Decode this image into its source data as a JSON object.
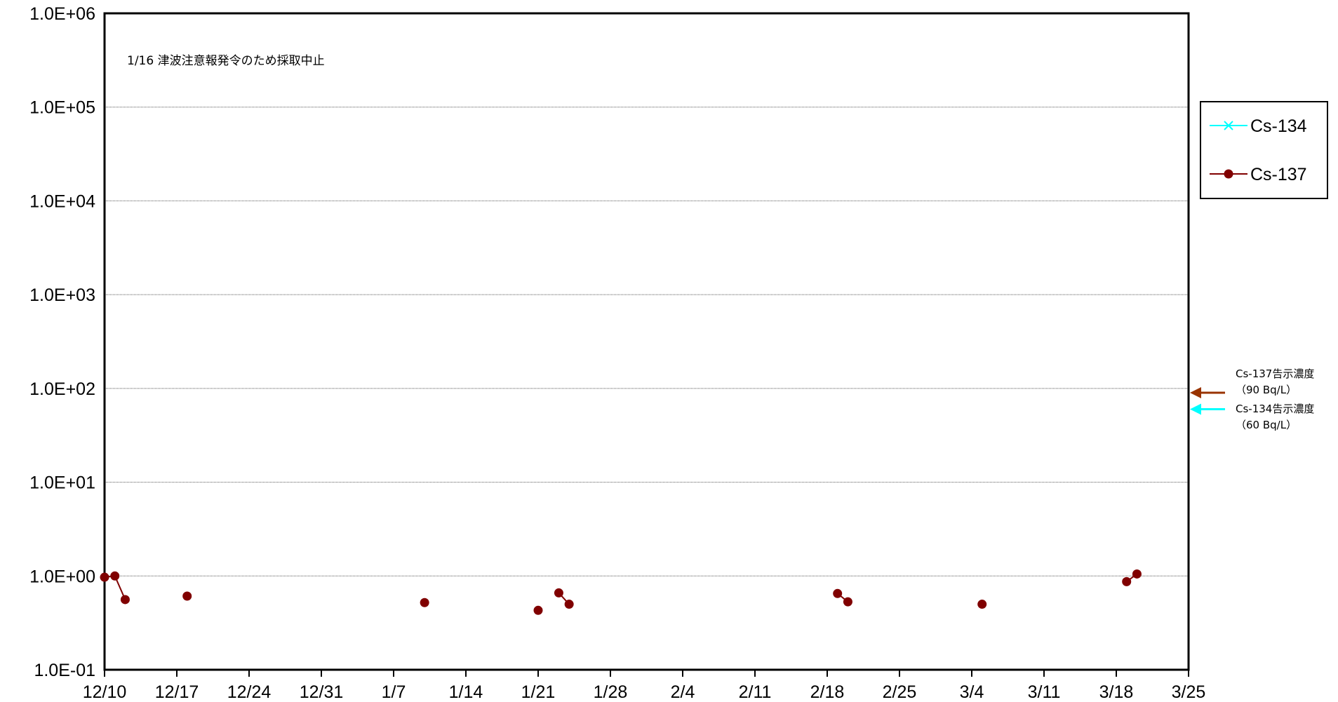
{
  "chart_data": {
    "type": "scatter",
    "title": "",
    "xlabel": "",
    "ylabel": "",
    "yscale": "log",
    "ylim": [
      0.1,
      1000000
    ],
    "yticks": [
      0.1,
      1,
      10,
      100,
      1000,
      10000,
      100000,
      1000000
    ],
    "ytick_labels": [
      "1.0E-01",
      "1.0E+00",
      "1.0E+01",
      "1.0E+02",
      "1.0E+03",
      "1.0E+04",
      "1.0E+05",
      "1.0E+06"
    ],
    "xlim": [
      "12/10",
      "3/25"
    ],
    "xtick_labels": [
      "12/10",
      "12/17",
      "12/24",
      "12/31",
      "1/7",
      "1/14",
      "1/21",
      "1/28",
      "2/4",
      "2/11",
      "2/18",
      "2/25",
      "3/4",
      "3/11",
      "3/18",
      "3/25"
    ],
    "grid": "horizontal",
    "legend_position": "right",
    "annotation": "1/16  津波注意報発令のため採取中止",
    "series": [
      {
        "name": "Cs-134",
        "color": "#00ffff",
        "marker": "x",
        "points": []
      },
      {
        "name": "Cs-137",
        "color": "#800000",
        "marker": "circle",
        "points": [
          {
            "x": "12/10",
            "y": 0.97
          },
          {
            "x": "12/11",
            "y": 1.0
          },
          {
            "x": "12/12",
            "y": 0.56
          },
          {
            "x": "12/18",
            "y": 0.61
          },
          {
            "x": "1/10",
            "y": 0.52
          },
          {
            "x": "1/21",
            "y": 0.43
          },
          {
            "x": "1/23",
            "y": 0.66
          },
          {
            "x": "1/24",
            "y": 0.5
          },
          {
            "x": "2/19",
            "y": 0.65
          },
          {
            "x": "2/20",
            "y": 0.53
          },
          {
            "x": "3/5",
            "y": 0.5
          },
          {
            "x": "3/19",
            "y": 0.87
          },
          {
            "x": "3/20",
            "y": 1.05
          }
        ],
        "connected_pairs": [
          [
            0,
            1
          ],
          [
            1,
            2
          ],
          [
            6,
            7
          ],
          [
            8,
            9
          ],
          [
            11,
            12
          ]
        ]
      }
    ],
    "reference_limits": [
      {
        "label_line1": "Cs-137告示濃度",
        "label_line2": "（90  Bq/L）",
        "value": 90,
        "color": "#993300"
      },
      {
        "label_line1": "Cs-134告示濃度",
        "label_line2": "（60  Bq/L）",
        "value": 60,
        "color": "#00ffff"
      }
    ]
  }
}
